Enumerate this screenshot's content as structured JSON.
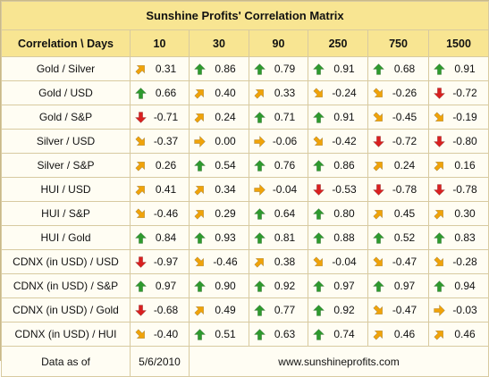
{
  "title": "Sunshine Profits' Correlation Matrix",
  "header": {
    "corner": "Correlation \\ Days",
    "columns": [
      "10",
      "30",
      "90",
      "250",
      "750",
      "1500"
    ]
  },
  "colors": {
    "up": "#2e9a2e",
    "up_right": "#f0a30a",
    "right": "#f0a30a",
    "down_right": "#f0a30a",
    "down": "#d92020",
    "header_bg": "#f8e592"
  },
  "rows": [
    {
      "label": "Gold / Silver",
      "cells": [
        {
          "v": "0.31",
          "dir": "up_right"
        },
        {
          "v": "0.86",
          "dir": "up"
        },
        {
          "v": "0.79",
          "dir": "up"
        },
        {
          "v": "0.91",
          "dir": "up"
        },
        {
          "v": "0.68",
          "dir": "up"
        },
        {
          "v": "0.91",
          "dir": "up"
        }
      ]
    },
    {
      "label": "Gold / USD",
      "cells": [
        {
          "v": "0.66",
          "dir": "up"
        },
        {
          "v": "0.40",
          "dir": "up_right"
        },
        {
          "v": "0.33",
          "dir": "up_right"
        },
        {
          "v": "-0.24",
          "dir": "down_right"
        },
        {
          "v": "-0.26",
          "dir": "down_right"
        },
        {
          "v": "-0.72",
          "dir": "down"
        }
      ]
    },
    {
      "label": "Gold / S&P",
      "cells": [
        {
          "v": "-0.71",
          "dir": "down"
        },
        {
          "v": "0.24",
          "dir": "up_right"
        },
        {
          "v": "0.71",
          "dir": "up"
        },
        {
          "v": "0.91",
          "dir": "up"
        },
        {
          "v": "-0.45",
          "dir": "down_right"
        },
        {
          "v": "-0.19",
          "dir": "down_right"
        }
      ]
    },
    {
      "label": "Silver / USD",
      "cells": [
        {
          "v": "-0.37",
          "dir": "down_right"
        },
        {
          "v": "0.00",
          "dir": "right"
        },
        {
          "v": "-0.06",
          "dir": "right"
        },
        {
          "v": "-0.42",
          "dir": "down_right"
        },
        {
          "v": "-0.72",
          "dir": "down"
        },
        {
          "v": "-0.80",
          "dir": "down"
        }
      ]
    },
    {
      "label": "Silver / S&P",
      "cells": [
        {
          "v": "0.26",
          "dir": "up_right"
        },
        {
          "v": "0.54",
          "dir": "up"
        },
        {
          "v": "0.76",
          "dir": "up"
        },
        {
          "v": "0.86",
          "dir": "up"
        },
        {
          "v": "0.24",
          "dir": "up_right"
        },
        {
          "v": "0.16",
          "dir": "up_right"
        }
      ]
    },
    {
      "label": "HUI / USD",
      "cells": [
        {
          "v": "0.41",
          "dir": "up_right"
        },
        {
          "v": "0.34",
          "dir": "up_right"
        },
        {
          "v": "-0.04",
          "dir": "right"
        },
        {
          "v": "-0.53",
          "dir": "down"
        },
        {
          "v": "-0.78",
          "dir": "down"
        },
        {
          "v": "-0.78",
          "dir": "down"
        }
      ]
    },
    {
      "label": "HUI / S&P",
      "cells": [
        {
          "v": "-0.46",
          "dir": "down_right"
        },
        {
          "v": "0.29",
          "dir": "up_right"
        },
        {
          "v": "0.64",
          "dir": "up"
        },
        {
          "v": "0.80",
          "dir": "up"
        },
        {
          "v": "0.45",
          "dir": "up_right"
        },
        {
          "v": "0.30",
          "dir": "up_right"
        }
      ]
    },
    {
      "label": "HUI / Gold",
      "cells": [
        {
          "v": "0.84",
          "dir": "up"
        },
        {
          "v": "0.93",
          "dir": "up"
        },
        {
          "v": "0.81",
          "dir": "up"
        },
        {
          "v": "0.88",
          "dir": "up"
        },
        {
          "v": "0.52",
          "dir": "up"
        },
        {
          "v": "0.83",
          "dir": "up"
        }
      ]
    },
    {
      "label": "CDNX (in USD) / USD",
      "cells": [
        {
          "v": "-0.97",
          "dir": "down"
        },
        {
          "v": "-0.46",
          "dir": "down_right"
        },
        {
          "v": "0.38",
          "dir": "up_right"
        },
        {
          "v": "-0.04",
          "dir": "down_right"
        },
        {
          "v": "-0.47",
          "dir": "down_right"
        },
        {
          "v": "-0.28",
          "dir": "down_right"
        }
      ]
    },
    {
      "label": "CDNX (in USD) / S&P",
      "cells": [
        {
          "v": "0.97",
          "dir": "up"
        },
        {
          "v": "0.90",
          "dir": "up"
        },
        {
          "v": "0.92",
          "dir": "up"
        },
        {
          "v": "0.97",
          "dir": "up"
        },
        {
          "v": "0.97",
          "dir": "up"
        },
        {
          "v": "0.94",
          "dir": "up"
        }
      ]
    },
    {
      "label": "CDNX (in USD) / Gold",
      "cells": [
        {
          "v": "-0.68",
          "dir": "down"
        },
        {
          "v": "0.49",
          "dir": "up_right"
        },
        {
          "v": "0.77",
          "dir": "up"
        },
        {
          "v": "0.92",
          "dir": "up"
        },
        {
          "v": "-0.47",
          "dir": "down_right"
        },
        {
          "v": "-0.03",
          "dir": "right"
        }
      ]
    },
    {
      "label": "CDNX (in USD) / HUI",
      "cells": [
        {
          "v": "-0.40",
          "dir": "down_right"
        },
        {
          "v": "0.51",
          "dir": "up"
        },
        {
          "v": "0.63",
          "dir": "up"
        },
        {
          "v": "0.74",
          "dir": "up"
        },
        {
          "v": "0.46",
          "dir": "up_right"
        },
        {
          "v": "0.46",
          "dir": "up_right"
        }
      ]
    }
  ],
  "footer": {
    "label": "Data as of",
    "date": "5/6/2010",
    "site": "www.sunshineprofits.com"
  }
}
